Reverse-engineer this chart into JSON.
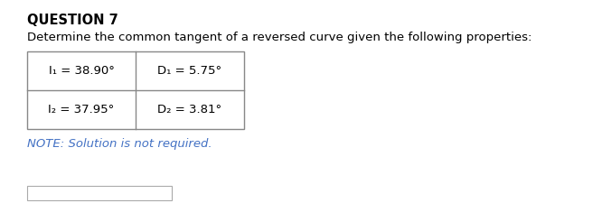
{
  "title": "QUESTION 7",
  "body_text": "Determine the common tangent of a reversed curve given the following properties:",
  "table": {
    "row1_col1": "I₁ = 38.90°",
    "row1_col2": "D₁ = 5.75°",
    "row2_col1": "I₂ = 37.95°",
    "row2_col2": "D₂ = 3.81°"
  },
  "note_text": "NOTE: Solution is not required.",
  "bg_color": "#ffffff",
  "title_color": "#000000",
  "body_color": "#000000",
  "note_color": "#4472c4",
  "table_text_color": "#000000",
  "title_fontsize": 10.5,
  "body_fontsize": 9.5,
  "table_fontsize": 9.5,
  "note_fontsize": 9.5,
  "fig_width": 6.56,
  "fig_height": 2.25,
  "dpi": 100
}
